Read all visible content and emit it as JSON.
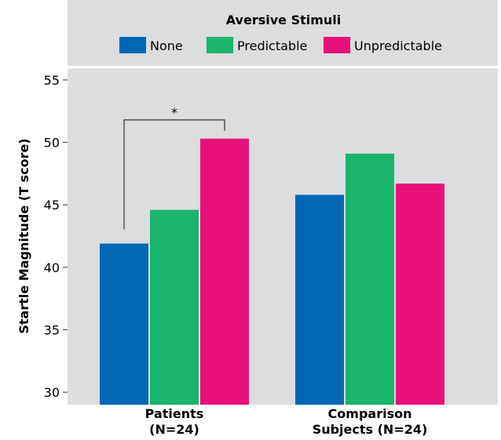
{
  "chart_data": {
    "type": "bar",
    "legend_title": "Aversive Stimuli",
    "legend_position": "top",
    "categories": [
      [
        "Patients",
        "(N=24)"
      ],
      [
        "Comparison",
        "Subjects (N=24)"
      ]
    ],
    "series": [
      {
        "name": "None",
        "values": [
          41.9,
          45.8
        ],
        "color": "#0068b5"
      },
      {
        "name": "Predictable",
        "values": [
          44.6,
          49.1
        ],
        "color": "#1ab56c"
      },
      {
        "name": "Unpredictable",
        "values": [
          50.3,
          46.7
        ],
        "color": "#e8117a"
      }
    ],
    "ylabel": "Startle Magnitude (T score)",
    "ylim": [
      29,
      56
    ],
    "yticks": [
      30,
      35,
      40,
      45,
      50,
      55
    ],
    "grid": false,
    "annotations": [
      {
        "text": "*",
        "type": "significance-bracket",
        "category": "Patients",
        "from_series": "None",
        "to_series": "Unpredictable",
        "y": 51.8
      }
    ]
  },
  "colors": {
    "panel_background": "#dcdddf",
    "legend_background": "#dcdddf"
  }
}
